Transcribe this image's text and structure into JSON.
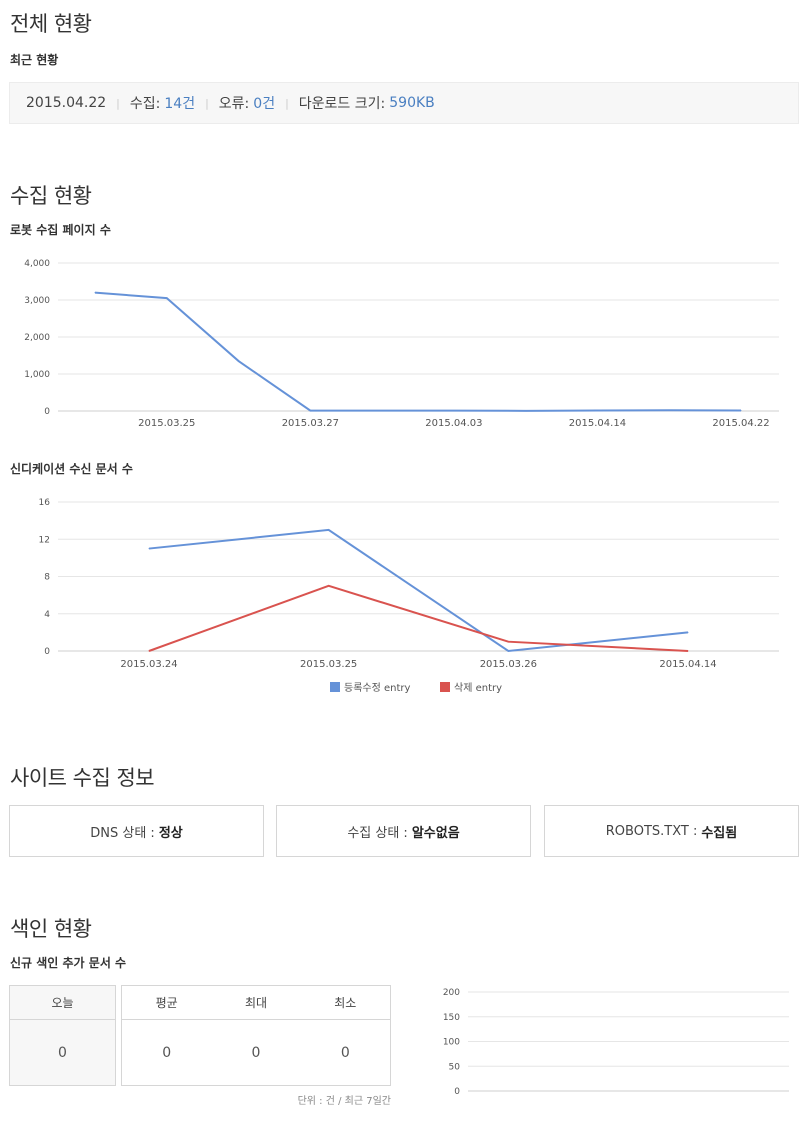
{
  "overall": {
    "title": "전체 현황",
    "subtitle": "최근 현황",
    "date": "2015.04.22",
    "collect_label": "수집:",
    "collect_value": "14건",
    "error_label": "오류:",
    "error_value": "0건",
    "download_label": "다운로드 크기:",
    "download_value": "590KB",
    "separator": "|"
  },
  "collection": {
    "title": "수집 현황",
    "robot_subtitle": "로봇 수집 페이지 수",
    "syndication_subtitle": "신디케이션 수신 문서 수"
  },
  "site_info": {
    "title": "사이트 수집 정보",
    "boxes": [
      {
        "label": "DNS 상태 :",
        "value": "정상"
      },
      {
        "label": "수집 상태 :",
        "value": "알수없음"
      },
      {
        "label": "ROBOTS.TXT :",
        "value": "수집됨"
      }
    ]
  },
  "index": {
    "title": "색인 현황",
    "subtitle": "신규 색인 추가 문서 수",
    "today_header": "오늘",
    "today_value": "0",
    "headers": [
      "평균",
      "최대",
      "최소"
    ],
    "values": [
      "0",
      "0",
      "0"
    ],
    "unit_note": "단위 : 건 / 최근 7일간"
  },
  "chart_data": [
    {
      "type": "line",
      "title": "로봇 수집 페이지 수",
      "x": [
        "",
        "2015.03.25",
        "",
        "2015.03.27",
        "",
        "2015.04.03",
        "",
        "2015.04.14",
        "",
        "2015.04.22"
      ],
      "x_tick_labels": [
        "2015.03.25",
        "2015.03.27",
        "2015.04.03",
        "2015.04.14",
        "2015.04.22"
      ],
      "series": [
        {
          "values": [
            3200,
            3050,
            1350,
            10,
            10,
            10,
            5,
            15,
            20,
            14
          ],
          "color": "#6592d8"
        }
      ],
      "ylim": [
        0,
        4000
      ],
      "y_ticks": [
        "0",
        "1,000",
        "2,000",
        "3,000",
        "4,000"
      ],
      "grid": true
    },
    {
      "type": "line",
      "title": "신디케이션 수신 문서 수",
      "x": [
        "2015.03.24",
        "2015.03.25",
        "2015.03.26",
        "2015.04.14"
      ],
      "series": [
        {
          "name": "등록수정 entry",
          "values": [
            11,
            13,
            0,
            2
          ],
          "color": "#6592d8"
        },
        {
          "name": "삭제 entry",
          "values": [
            0,
            7,
            1,
            0
          ],
          "color": "#d9534f"
        }
      ],
      "ylim": [
        0,
        16
      ],
      "y_ticks": [
        "0",
        "4",
        "8",
        "12",
        "16"
      ],
      "grid": true,
      "legend": "bottom"
    },
    {
      "type": "line",
      "title": "신규 색인 추가 문서 수",
      "x": [],
      "series": [],
      "ylim": [
        0,
        200
      ],
      "y_ticks": [
        "0",
        "50",
        "100",
        "150",
        "200"
      ],
      "grid": true
    }
  ]
}
